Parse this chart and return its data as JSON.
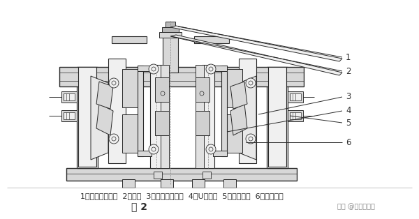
{
  "bg_color": "#ffffff",
  "line_color": "#2a2a2a",
  "fill_light": "#f0f0f0",
  "fill_mid": "#d8d8d8",
  "fill_dark": "#b8b8b8",
  "caption_line": "1、提拉连接组件  2、壳体  3、导向滑板组件  4、U型板簧  5、调整螺栓  6、活动模块",
  "figure_label": "图 2",
  "watermark": "知乎 @电梯招聘网",
  "caption_fontsize": 8,
  "fig_label_fontsize": 10,
  "watermark_fontsize": 7
}
